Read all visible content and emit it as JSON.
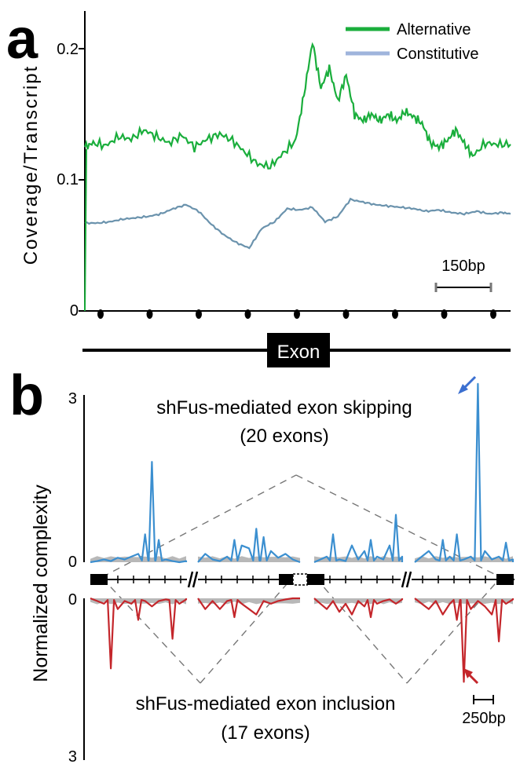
{
  "panel_a": {
    "label": "a",
    "ylabel": "Coverage/Transcript",
    "yticks": [
      "0",
      "0.1",
      "0.2"
    ],
    "scalebar": "150bp",
    "exon_label": "Exon"
  },
  "panel_b": {
    "label": "b",
    "ylabel": "Normalized complexity",
    "yticks_top": [
      "3",
      "0"
    ],
    "yticks_bottom": [
      "0",
      "3"
    ],
    "title_top": "shFus-mediated exon skipping",
    "subtitle_top": "(20 exons)",
    "title_bottom": "shFus-mediated exon inclusion",
    "subtitle_bottom": "(17 exons)",
    "scalebar": "250bp"
  },
  "colors": {
    "alternative": "#1aae3c",
    "constitutive": "#6b93ad",
    "constitutive_legend": "#9fb4dc",
    "skipping": "#3b8fd0",
    "inclusion": "#c4262b",
    "background": "#b8b8b8"
  },
  "chart_data": [
    {
      "type": "line",
      "panel": "a",
      "ylabel": "Coverage/Transcript",
      "ylim": [
        0,
        0.22
      ],
      "xlabel": "",
      "legend_position": "top-right",
      "series": [
        {
          "name": "Alternative",
          "x": [
            0,
            2,
            5,
            8,
            11,
            14,
            17,
            20,
            23,
            26,
            29,
            32,
            35,
            38,
            41,
            44,
            47,
            50,
            52,
            54,
            56,
            58,
            60,
            62,
            64,
            66,
            68,
            70,
            72,
            74,
            76,
            78,
            80,
            82,
            84,
            86,
            88,
            90,
            92,
            95,
            98,
            101
          ],
          "y": [
            0.125,
            0.128,
            0.126,
            0.133,
            0.131,
            0.138,
            0.133,
            0.128,
            0.134,
            0.125,
            0.131,
            0.135,
            0.13,
            0.121,
            0.112,
            0.11,
            0.12,
            0.13,
            0.165,
            0.205,
            0.17,
            0.185,
            0.16,
            0.18,
            0.15,
            0.145,
            0.15,
            0.145,
            0.15,
            0.145,
            0.152,
            0.148,
            0.143,
            0.128,
            0.125,
            0.13,
            0.138,
            0.128,
            0.118,
            0.128,
            0.127,
            0.127
          ]
        },
        {
          "name": "Constitutive",
          "x": [
            0,
            3,
            6,
            9,
            12,
            15,
            18,
            21,
            24,
            27,
            30,
            33,
            36,
            39,
            42,
            45,
            48,
            51,
            54,
            57,
            60,
            63,
            66,
            69,
            72,
            75,
            78,
            81,
            84,
            87,
            90,
            93,
            96,
            99,
            101
          ],
          "y": [
            0.067,
            0.067,
            0.068,
            0.07,
            0.071,
            0.072,
            0.074,
            0.078,
            0.081,
            0.076,
            0.066,
            0.058,
            0.052,
            0.048,
            0.063,
            0.068,
            0.078,
            0.077,
            0.079,
            0.068,
            0.072,
            0.085,
            0.083,
            0.081,
            0.08,
            0.079,
            0.078,
            0.076,
            0.077,
            0.075,
            0.074,
            0.076,
            0.074,
            0.075,
            0.074
          ]
        }
      ]
    },
    {
      "type": "line",
      "panel": "b-skipping",
      "ylabel": "Normalized complexity",
      "ylim": [
        0,
        3
      ],
      "series": [
        {
          "values": [
            0,
            0.02,
            0.05,
            0.02,
            0.08,
            0.05,
            0.1,
            0.15,
            0.5,
            1.8,
            0.4,
            0.05,
            0.02,
            0,
            0.02
          ]
        },
        {
          "values": [
            0,
            0.15,
            0.05,
            0.02,
            0.1,
            0.4,
            0.3,
            0.25,
            0.6,
            0.45,
            0.2,
            0.08,
            0.15,
            0.05,
            0
          ]
        },
        {
          "values": [
            0,
            0.05,
            0.1,
            0.5,
            0.05,
            0.02,
            0.3,
            0.05,
            0.2,
            0.4,
            0.1,
            0.05,
            0.3,
            0.85,
            0.1
          ]
        },
        {
          "values": [
            0,
            0.1,
            0.2,
            0.05,
            0.4,
            0.1,
            0.5,
            0.05,
            0.1,
            3.2,
            0.2,
            0.05,
            0.1,
            0.35,
            0.05
          ]
        }
      ]
    },
    {
      "type": "line",
      "panel": "b-inclusion",
      "ylabel": "Normalized complexity",
      "ylim": [
        0,
        3
      ],
      "series": [
        {
          "values": [
            0,
            0.05,
            0.1,
            1.3,
            0.2,
            0.05,
            0.1,
            0.4,
            0.05,
            0.15,
            0.05,
            0.02,
            0.75,
            0.1,
            0.02
          ]
        },
        {
          "values": [
            0,
            0.2,
            0.05,
            0.2,
            0.05,
            0.35,
            0.1,
            0.2,
            0.3,
            0.05,
            0.1,
            0.05,
            0.02,
            0,
            0
          ]
        },
        {
          "values": [
            0,
            0.1,
            0.2,
            0.05,
            0.25,
            0.1,
            0.3,
            0.05,
            0.15,
            0.35,
            0.1,
            0.05,
            0.02,
            0.1,
            0.02
          ]
        },
        {
          "values": [
            0,
            0.1,
            0.2,
            0.05,
            0.3,
            0.1,
            0.4,
            1.55,
            0.2,
            0.05,
            0.15,
            0.3,
            0.8,
            0.1,
            0.02
          ]
        }
      ]
    }
  ]
}
